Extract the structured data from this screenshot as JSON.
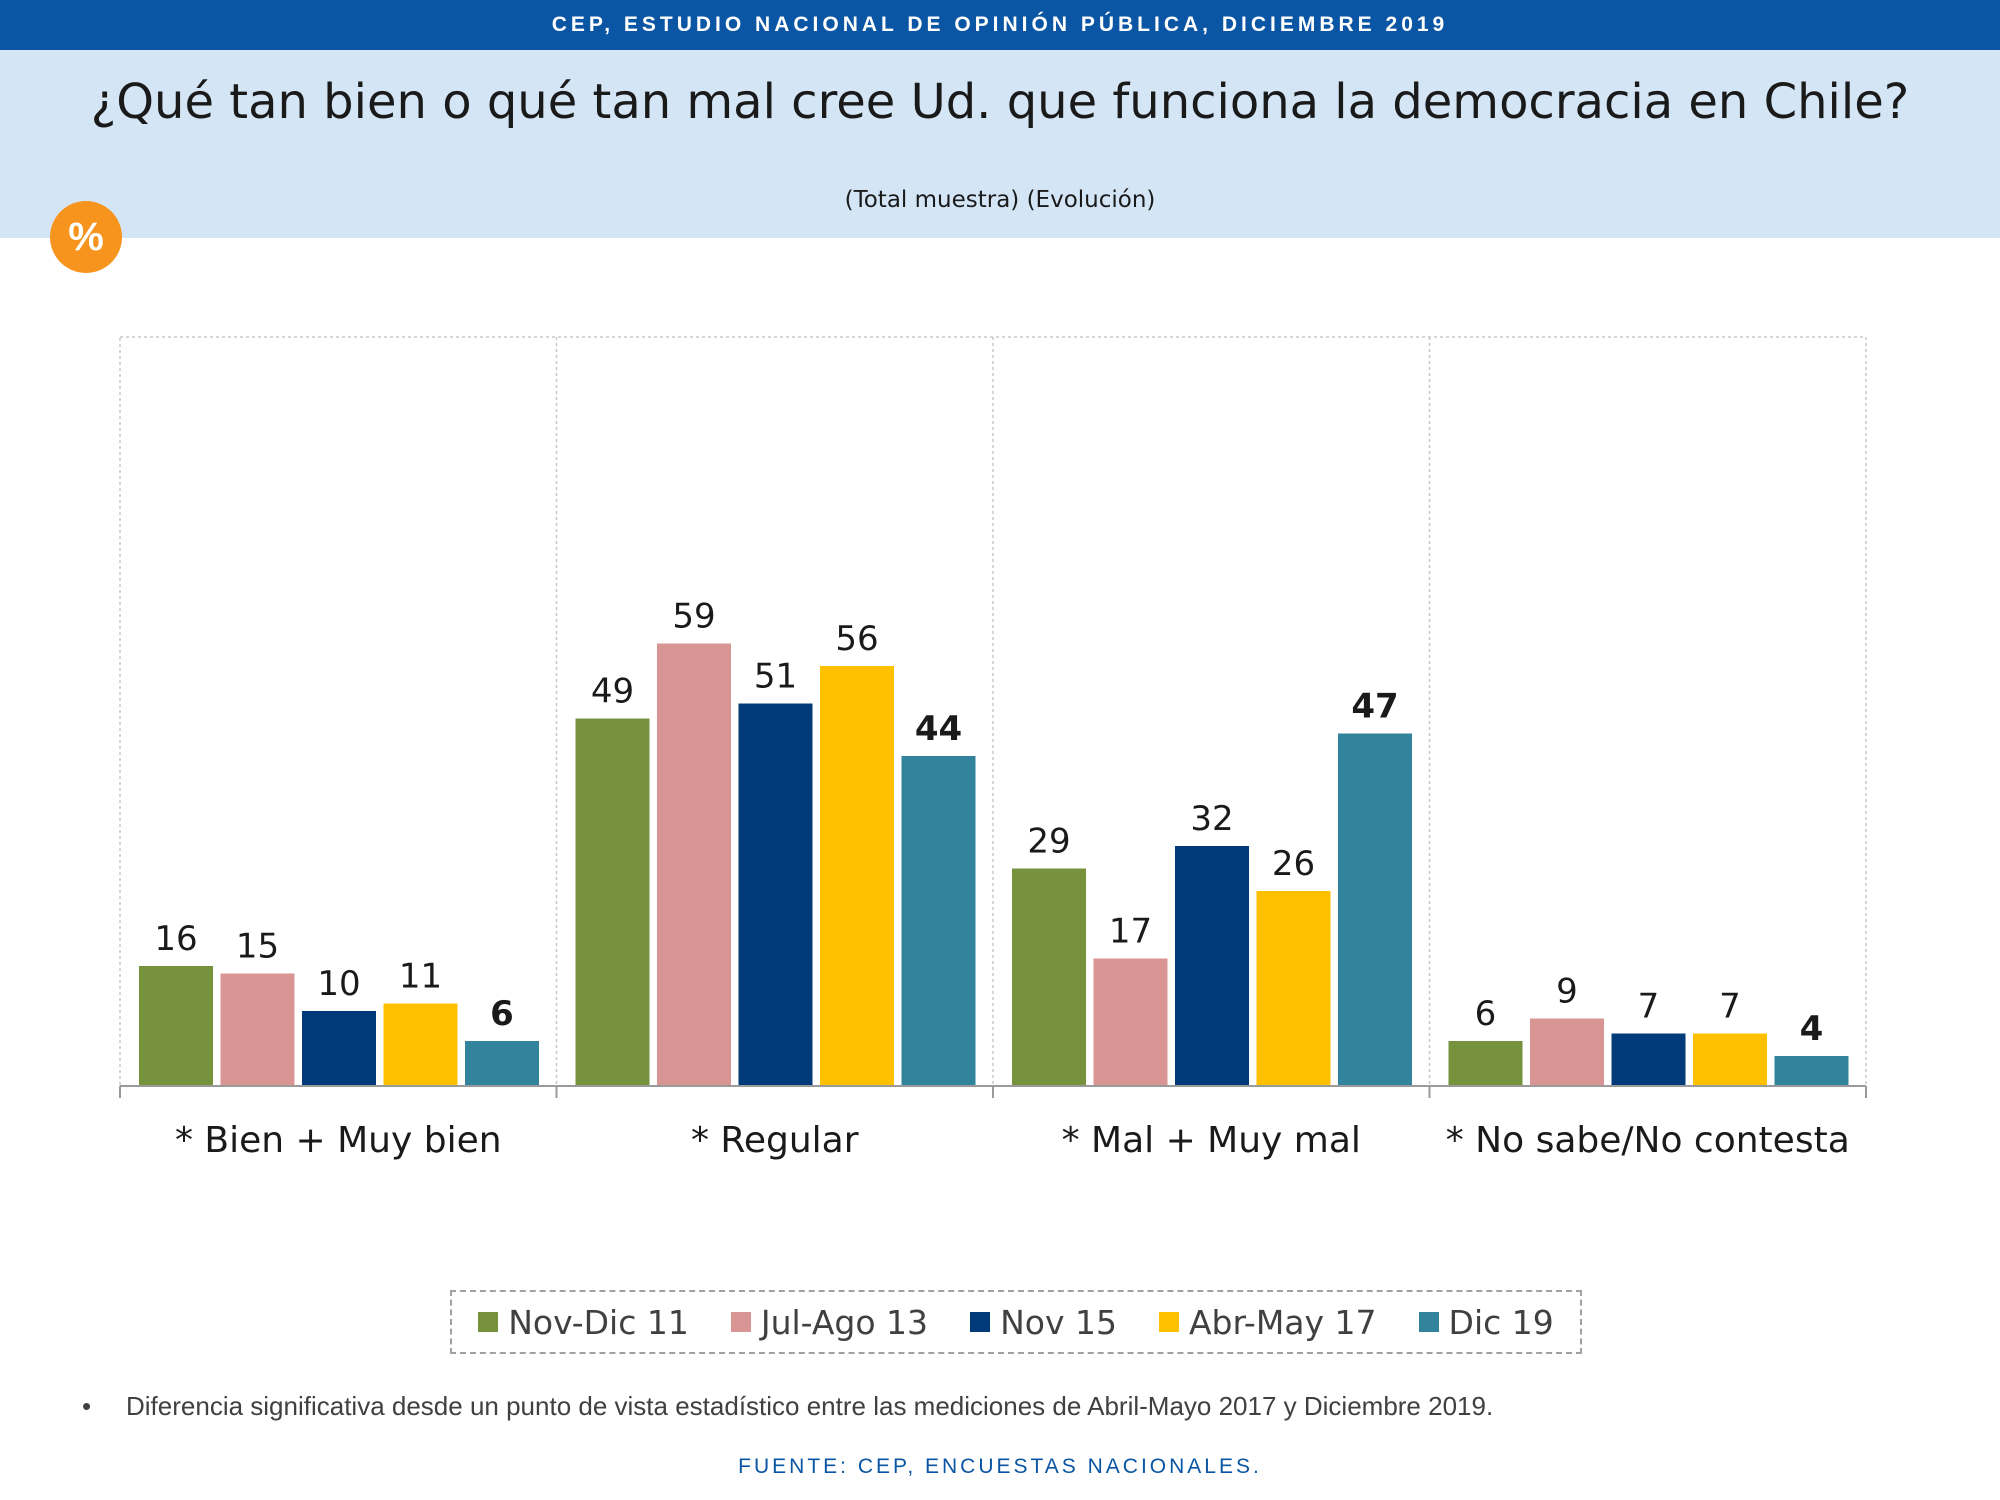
{
  "header": {
    "band_text": "CEP, ESTUDIO NACIONAL DE OPINIÓN PÚBLICA, DICIEMBRE 2019",
    "title": "¿Qué tan bien o qué tan mal cree Ud. que funciona la democracia en Chile?",
    "subtitle": "(Total muestra) (Evolución)",
    "badge": "%"
  },
  "chart_data": {
    "type": "bar",
    "categories": [
      "* Bien + Muy bien",
      "* Regular",
      "* Mal + Muy mal",
      "* No sabe/No contesta"
    ],
    "series": [
      {
        "name": "Nov-Dic 11",
        "color": "#76923c",
        "values": [
          16,
          49,
          29,
          6
        ]
      },
      {
        "name": "Jul-Ago 13",
        "color": "#d99594",
        "values": [
          15,
          59,
          17,
          9
        ]
      },
      {
        "name": "Nov 15",
        "color": "#003a78",
        "values": [
          10,
          51,
          32,
          7
        ]
      },
      {
        "name": "Abr-May 17",
        "color": "#ffc000",
        "values": [
          11,
          56,
          26,
          7
        ]
      },
      {
        "name": "Dic 19",
        "color": "#31849b",
        "values": [
          6,
          44,
          47,
          4
        ]
      }
    ],
    "bold_series": "Dic 19",
    "ylim": [
      0,
      100
    ],
    "grid": false,
    "legend_position": "bottom"
  },
  "footnote": {
    "bullet": "•",
    "text": "Diferencia significativa desde un punto de vista estadístico entre las mediciones de Abril-Mayo 2017 y Diciembre 2019."
  },
  "source": "FUENTE: CEP, ENCUESTAS NACIONALES."
}
